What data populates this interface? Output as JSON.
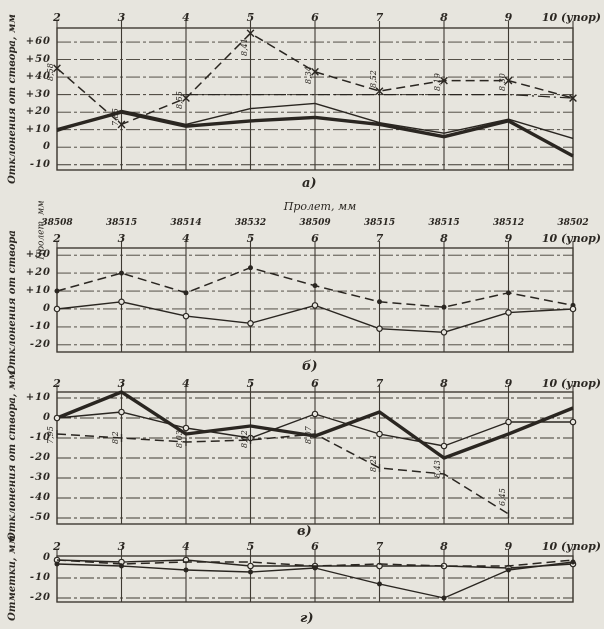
{
  "page": {
    "background": "#e7e5de",
    "ink": "#2a2621",
    "grid": "#3f3a32"
  },
  "figure": {
    "x_axis_note": "10 (упор)"
  },
  "chart_data": [
    {
      "id": "a",
      "type": "line",
      "caption": "а)",
      "ylabel": "Отклонения от створа, мм",
      "x_labels": [
        "2",
        "3",
        "4",
        "5",
        "6",
        "7",
        "8",
        "9",
        "10 (упор)"
      ],
      "y_tick_labels": [
        "+60",
        "+50",
        "+40",
        "+30",
        "+20",
        "+10",
        "0",
        "-10"
      ],
      "ylim": [
        -13,
        68
      ],
      "grid": true,
      "series": [
        {
          "name": "dashed-with-x-markers",
          "style": "dashed",
          "marker": "x",
          "values": [
            45,
            13,
            28,
            65,
            43,
            32,
            38,
            38,
            28
          ]
        },
        {
          "name": "thick-solid",
          "style": "thick",
          "marker": "none",
          "values": [
            10,
            20,
            12,
            15,
            17,
            13,
            6,
            15,
            -5
          ]
        },
        {
          "name": "thin-solid",
          "style": "thin",
          "marker": "none",
          "values": [
            9,
            21,
            13,
            22,
            25,
            14,
            8,
            16,
            5
          ]
        },
        {
          "name": "dash-dot",
          "style": "dashdot",
          "marker": "none",
          "values": [
            null,
            null,
            30,
            30,
            30,
            30,
            30,
            30,
            28
          ]
        }
      ],
      "point_labels": [
        {
          "point": 0,
          "value": 38,
          "text": "8,58"
        },
        {
          "point": 1,
          "value": 12,
          "text": "7,85"
        },
        {
          "point": 2,
          "value": 22,
          "text": "8,55"
        },
        {
          "point": 3,
          "value": 52,
          "text": "8,41"
        },
        {
          "point": 4,
          "value": 36,
          "text": "8,34"
        },
        {
          "point": 5,
          "value": 34,
          "text": "8,52"
        },
        {
          "point": 6,
          "value": 32,
          "text": "8,19"
        },
        {
          "point": 7,
          "value": 32,
          "text": "8,30"
        }
      ]
    },
    {
      "id": "b",
      "type": "line",
      "caption": "б)",
      "ylabel": "Отклонения от створа",
      "ylabel2": "Пролет, мм",
      "top_title": "Пролет, мм",
      "span_values": [
        "38508",
        "38515",
        "38514",
        "38532",
        "38509",
        "38515",
        "38515",
        "38512",
        "38502"
      ],
      "x_labels": [
        "2",
        "3",
        "4",
        "5",
        "6",
        "7",
        "8",
        "9",
        "10 (упор)"
      ],
      "y_tick_labels": [
        "+30",
        "+20",
        "+10",
        "0",
        "-10",
        "-20"
      ],
      "ylim": [
        -24,
        34
      ],
      "grid": true,
      "series": [
        {
          "name": "dashed-spans",
          "style": "dashed",
          "marker": "dot",
          "values": [
            10,
            20,
            9,
            23,
            13,
            4,
            1,
            9,
            2
          ]
        },
        {
          "name": "thin-solid",
          "style": "thin",
          "marker": "circle",
          "values": [
            0,
            4,
            -4,
            -8,
            2,
            -11,
            -13,
            -2,
            0
          ]
        }
      ],
      "point_labels": []
    },
    {
      "id": "v",
      "type": "line",
      "caption": "в)",
      "ylabel": "Отклонения от створа, мм",
      "x_labels": [
        "2",
        "3",
        "4",
        "5",
        "6",
        "7",
        "8",
        "9",
        "10 (упор)"
      ],
      "y_tick_labels": [
        "+10",
        "0",
        "-10",
        "-20",
        "-30",
        "-40",
        "-50"
      ],
      "ylim": [
        -53,
        13
      ],
      "grid": true,
      "series": [
        {
          "name": "thick-solid",
          "style": "thick",
          "marker": "none",
          "values": [
            0,
            13,
            -8,
            -4,
            -9,
            3,
            -20,
            -8,
            5
          ]
        },
        {
          "name": "thin-solid",
          "style": "thin",
          "marker": "circle",
          "values": [
            0,
            3,
            -5,
            -10,
            2,
            -8,
            -14,
            -2,
            -2
          ]
        },
        {
          "name": "dashed",
          "style": "dashed",
          "marker": "tick",
          "values": [
            -8,
            -10,
            -12,
            -11,
            -8,
            -25,
            -28,
            -48,
            null
          ]
        }
      ],
      "point_labels": [
        {
          "point": 0,
          "value": -13,
          "text": "7,95"
        },
        {
          "point": 1,
          "value": -13,
          "text": "8,2"
        },
        {
          "point": 2,
          "value": -15,
          "text": "8,03"
        },
        {
          "point": 3,
          "value": -15,
          "text": "8,02"
        },
        {
          "point": 4,
          "value": -13,
          "text": "8,07"
        },
        {
          "point": 5,
          "value": -27,
          "text": "8,21"
        },
        {
          "point": 6,
          "value": -30,
          "text": "8,43"
        },
        {
          "point": 7,
          "value": -44,
          "text": "6,45"
        }
      ]
    },
    {
      "id": "g",
      "type": "line",
      "caption": "г)",
      "ylabel": "Отметки, мм",
      "x_labels": [
        "2",
        "3",
        "4",
        "5",
        "6",
        "7",
        "8",
        "9",
        "10 (упор)"
      ],
      "y_tick_labels": [
        "0",
        "-10",
        "-20"
      ],
      "ylim": [
        -22,
        1
      ],
      "grid": true,
      "series": [
        {
          "name": "upper-solid",
          "style": "thin",
          "marker": "circle",
          "values": [
            -1,
            -2,
            -1,
            -4,
            -4,
            -4,
            -4,
            -5,
            -3
          ]
        },
        {
          "name": "lower-solid",
          "style": "thin",
          "marker": "dot",
          "values": [
            -3,
            -4,
            -6,
            -7,
            -5,
            -13,
            -20,
            -6,
            -2
          ]
        },
        {
          "name": "dashed",
          "style": "dashed",
          "marker": "none",
          "values": [
            -1,
            -3,
            -2,
            -2,
            -4,
            -3,
            -4,
            -4,
            -1
          ]
        }
      ],
      "point_labels": []
    }
  ]
}
